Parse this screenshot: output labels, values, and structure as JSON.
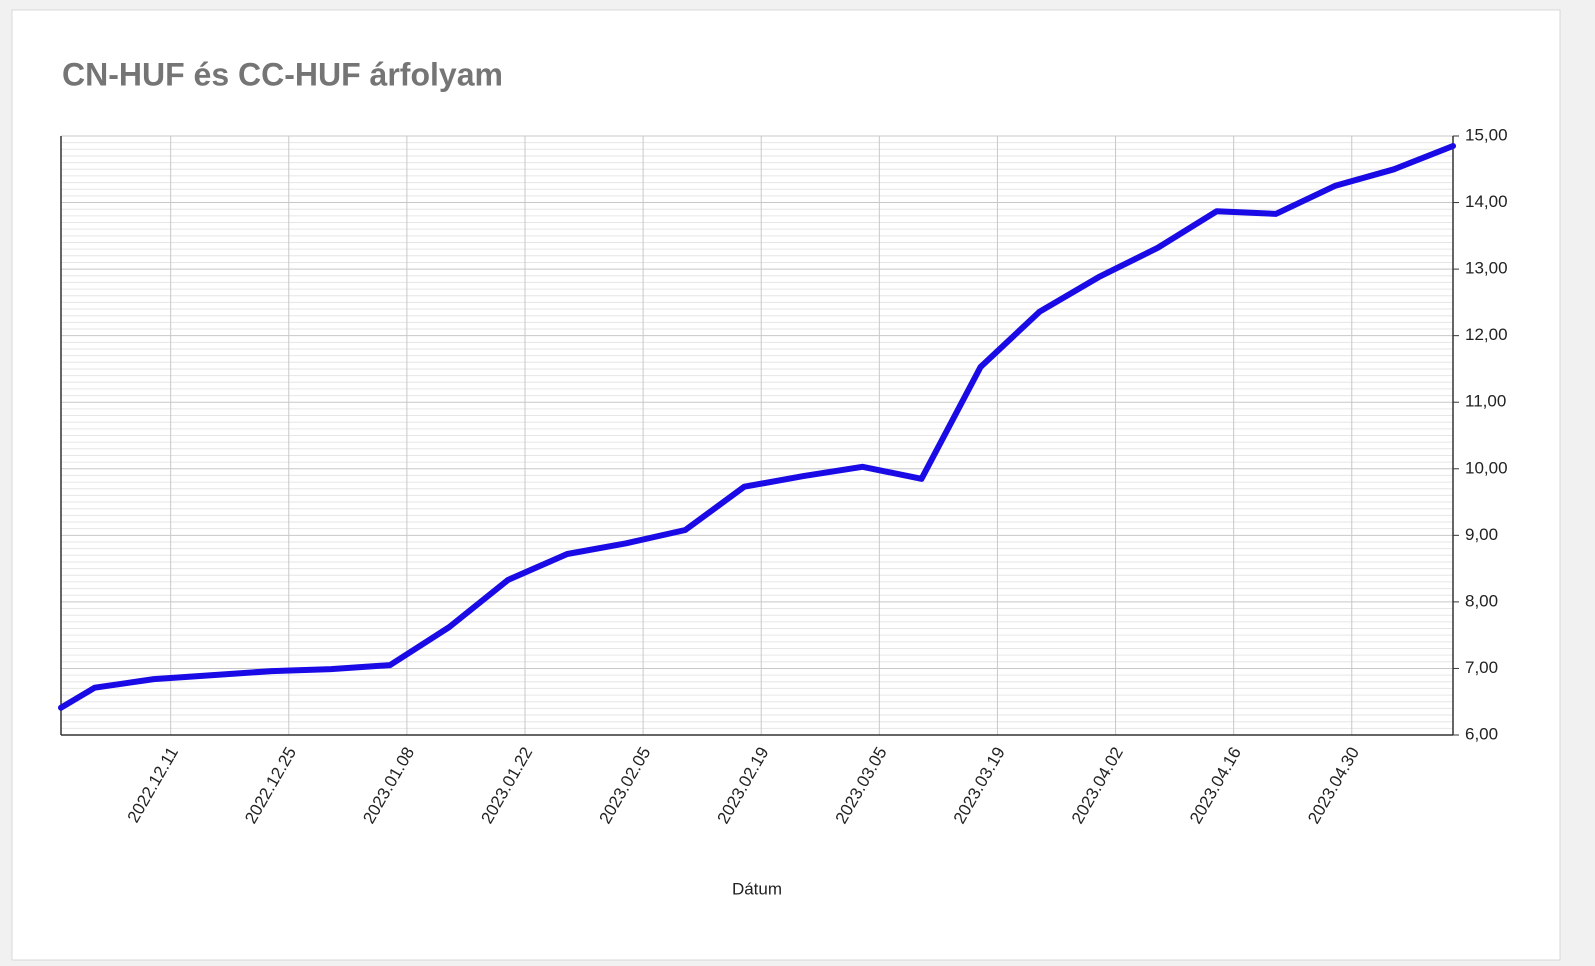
{
  "chart_data": {
    "type": "line",
    "title": "CN-HUF és CC-HUF árfolyam",
    "x_label": "Dátum",
    "x": [
      "2022.11.28",
      "2022.12.02",
      "2022.12.09",
      "2022.12.16",
      "2022.12.23",
      "2022.12.30",
      "2023.01.06",
      "2023.01.13",
      "2023.01.20",
      "2023.01.27",
      "2023.02.03",
      "2023.02.10",
      "2023.02.17",
      "2023.02.24",
      "2023.03.03",
      "2023.03.10",
      "2023.03.17",
      "2023.03.24",
      "2023.03.31",
      "2023.04.07",
      "2023.04.14",
      "2023.04.21",
      "2023.04.28",
      "2023.05.05",
      "2023.05.12"
    ],
    "values": [
      6.41,
      6.71,
      6.84,
      6.9,
      6.96,
      6.99,
      7.05,
      7.62,
      8.33,
      8.72,
      8.88,
      9.08,
      9.73,
      9.89,
      10.03,
      9.85,
      11.53,
      12.36,
      12.88,
      13.32,
      13.87,
      13.83,
      14.25,
      14.5,
      14.85
    ],
    "color": "#1a0ae6",
    "xlim": [
      "2022.11.28",
      "2023.05.12"
    ],
    "xticks": [
      "2022.12.11",
      "2022.12.25",
      "2023.01.08",
      "2023.01.22",
      "2023.02.05",
      "2023.02.19",
      "2023.03.05",
      "2023.03.19",
      "2023.04.02",
      "2023.04.16",
      "2023.04.30"
    ],
    "ylim": [
      6,
      15
    ],
    "yticks": [
      {
        "value": 6,
        "label": "6,00"
      },
      {
        "value": 7,
        "label": "7,00"
      },
      {
        "value": 8,
        "label": "8,00"
      },
      {
        "value": 9,
        "label": "9,00"
      },
      {
        "value": 10,
        "label": "10,00"
      },
      {
        "value": 11,
        "label": "11,00"
      },
      {
        "value": 12,
        "label": "12,00"
      },
      {
        "value": 13,
        "label": "13,00"
      },
      {
        "value": 14,
        "label": "14,00"
      },
      {
        "value": 15,
        "label": "15,00"
      }
    ],
    "y_axis_side": "right",
    "grid": true,
    "minor_gridlines_per_major": 10
  }
}
